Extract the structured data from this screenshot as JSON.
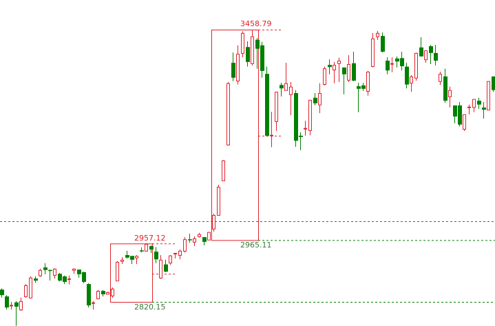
{
  "chart_data": {
    "type": "candlestick",
    "title": "",
    "xlabel": "",
    "ylabel": "",
    "ylim": [
      2763.6,
      3528.3
    ],
    "grid": false,
    "colors": {
      "up": "#e0202a",
      "down": "#008000",
      "label_red": "#e0202a",
      "label_green": "#3a7a3a"
    },
    "candles": [
      [
        2849,
        2852,
        2830,
        2836
      ],
      [
        2833,
        2836,
        2802,
        2807
      ],
      [
        2812,
        2820,
        2802,
        2813
      ],
      [
        2819,
        2822,
        2764,
        2809
      ],
      [
        2802,
        2830,
        2799,
        2822
      ],
      [
        2833,
        2862,
        2830,
        2859
      ],
      [
        2830,
        2880,
        2828,
        2877
      ],
      [
        2875,
        2880,
        2865,
        2870
      ],
      [
        2882,
        2898,
        2879,
        2895
      ],
      [
        2901,
        2911,
        2885,
        2895
      ],
      [
        2895,
        2896,
        2870,
        2893
      ],
      [
        2883,
        2899,
        2875,
        2898
      ],
      [
        2886,
        2888,
        2868,
        2870
      ],
      [
        2880,
        2882,
        2862,
        2867
      ],
      [
        2874,
        2882,
        2861,
        2875
      ],
      [
        2895,
        2899,
        2886,
        2898
      ],
      [
        2896,
        2896,
        2877,
        2885
      ],
      [
        2890,
        2891,
        2864,
        2867
      ],
      [
        2862,
        2864,
        2807,
        2812
      ],
      [
        2818,
        2822,
        2802,
        2819
      ],
      [
        2828,
        2848,
        2827,
        2846
      ],
      [
        2846,
        2848,
        2833,
        2838
      ],
      [
        2839,
        2844,
        2838,
        2843
      ],
      [
        2835,
        2854,
        2830,
        2851
      ],
      [
        2870,
        2916,
        2870,
        2914
      ],
      [
        2916,
        2925,
        2909,
        2919
      ],
      [
        2930,
        2940,
        2922,
        2924
      ],
      [
        2928,
        2928,
        2909,
        2919
      ],
      [
        2924,
        2930,
        2909,
        2928
      ],
      [
        2941,
        2948,
        2936,
        2940
      ],
      [
        2940,
        2957.12,
        2940,
        2956
      ],
      [
        2951,
        2953,
        2935,
        2943
      ],
      [
        2938,
        2949,
        2911,
        2920
      ],
      [
        2877,
        2930,
        2874,
        2919
      ],
      [
        2908,
        2919,
        2890,
        2891
      ],
      [
        2912,
        2930,
        2907,
        2929
      ],
      [
        2934,
        2935,
        2922,
        2935
      ],
      [
        2930,
        2943,
        2920,
        2940
      ],
      [
        2940,
        2972,
        2936,
        2967
      ],
      [
        2967,
        2980,
        2959,
        2966
      ],
      [
        2961,
        2974,
        2951,
        2969
      ],
      [
        2974,
        2982,
        2971,
        2979
      ],
      [
        2972,
        2972,
        2953,
        2961
      ],
      [
        2966,
        2984,
        2965.11,
        2984
      ],
      [
        2992,
        3027,
        2985,
        3024
      ],
      [
        3024,
        3095,
        3022,
        3090
      ],
      [
        3105,
        3153,
        3105,
        3152
      ],
      [
        3189,
        3336,
        3187,
        3333
      ],
      [
        3381,
        3405,
        3338,
        3346
      ],
      [
        3339,
        3422,
        3330,
        3402
      ],
      [
        3404,
        3455,
        3394,
        3451
      ],
      [
        3418,
        3431,
        3372,
        3383
      ],
      [
        3380,
        3458.79,
        3375,
        3443
      ],
      [
        3435,
        3439,
        3367,
        3414
      ],
      [
        3422,
        3430,
        3346,
        3362
      ],
      [
        3355,
        3372,
        3208,
        3210
      ],
      [
        3211,
        3266,
        3183,
        3212
      ],
      [
        3244,
        3313,
        3221,
        3313
      ],
      [
        3329,
        3334,
        3302,
        3321
      ],
      [
        3317,
        3381,
        3317,
        3333
      ],
      [
        3307,
        3336,
        3258,
        3325
      ],
      [
        3310,
        3317,
        3184,
        3198
      ],
      [
        3210,
        3218,
        3176,
        3207
      ],
      [
        3227,
        3245,
        3210,
        3228
      ],
      [
        3223,
        3294,
        3211,
        3294
      ],
      [
        3299,
        3310,
        3281,
        3286
      ],
      [
        3283,
        3333,
        3263,
        3310
      ],
      [
        3331,
        3372,
        3328,
        3368
      ],
      [
        3376,
        3389,
        3354,
        3371
      ],
      [
        3365,
        3383,
        3333,
        3376
      ],
      [
        3380,
        3393,
        3336,
        3386
      ],
      [
        3370,
        3370,
        3307,
        3354
      ],
      [
        3341,
        3399,
        3336,
        3378
      ],
      [
        3380,
        3407,
        3338,
        3339
      ],
      [
        3326,
        3334,
        3265,
        3320
      ],
      [
        3328,
        3334,
        3315,
        3320
      ],
      [
        3315,
        3362,
        3304,
        3360
      ],
      [
        3373,
        3451,
        3370,
        3438
      ],
      [
        3443,
        3456,
        3435,
        3451
      ],
      [
        3444,
        3452,
        3405,
        3407
      ],
      [
        3386,
        3394,
        3354,
        3363
      ],
      [
        3379,
        3394,
        3359,
        3380
      ],
      [
        3391,
        3396,
        3370,
        3384
      ],
      [
        3392,
        3407,
        3363,
        3373
      ],
      [
        3372,
        3381,
        3321,
        3330
      ],
      [
        3334,
        3352,
        3313,
        3349
      ],
      [
        3346,
        3405,
        3339,
        3404
      ],
      [
        3417,
        3441,
        3396,
        3396
      ],
      [
        3389,
        3410,
        3381,
        3410
      ],
      [
        3420,
        3423,
        3378,
        3404
      ],
      [
        3404,
        3423,
        3375,
        3386
      ],
      [
        3338,
        3360,
        3329,
        3355
      ],
      [
        3349,
        3367,
        3287,
        3292
      ],
      [
        3302,
        3325,
        3276,
        3317
      ],
      [
        3281,
        3281,
        3239,
        3255
      ],
      [
        3281,
        3289,
        3232,
        3236
      ],
      [
        3226,
        3260,
        3221,
        3260
      ],
      [
        3277,
        3283,
        3260,
        3278
      ],
      [
        3277,
        3296,
        3265,
        3296
      ],
      [
        3292,
        3299,
        3273,
        3283
      ],
      [
        3276,
        3289,
        3250,
        3271
      ],
      [
        3271,
        3338,
        3270,
        3338
      ],
      [
        3349,
        3349,
        3313,
        3317
      ]
    ],
    "candle_fields": [
      "open",
      "high",
      "low",
      "close"
    ],
    "level_line": {
      "price": 3009.3,
      "color": "#e0202a",
      "style": "dashed"
    },
    "annotations": [
      {
        "start": 23,
        "end": 31,
        "high": 2957.12,
        "low": 2820.15,
        "mid_price": 2886,
        "high_label": "2957.12",
        "low_label": "2820.15"
      },
      {
        "start": 44,
        "end": 53,
        "high": 3458.79,
        "low": 2965.11,
        "mid_price": 3210,
        "high_label": "3458.79",
        "low_label": "2965.11"
      }
    ]
  }
}
